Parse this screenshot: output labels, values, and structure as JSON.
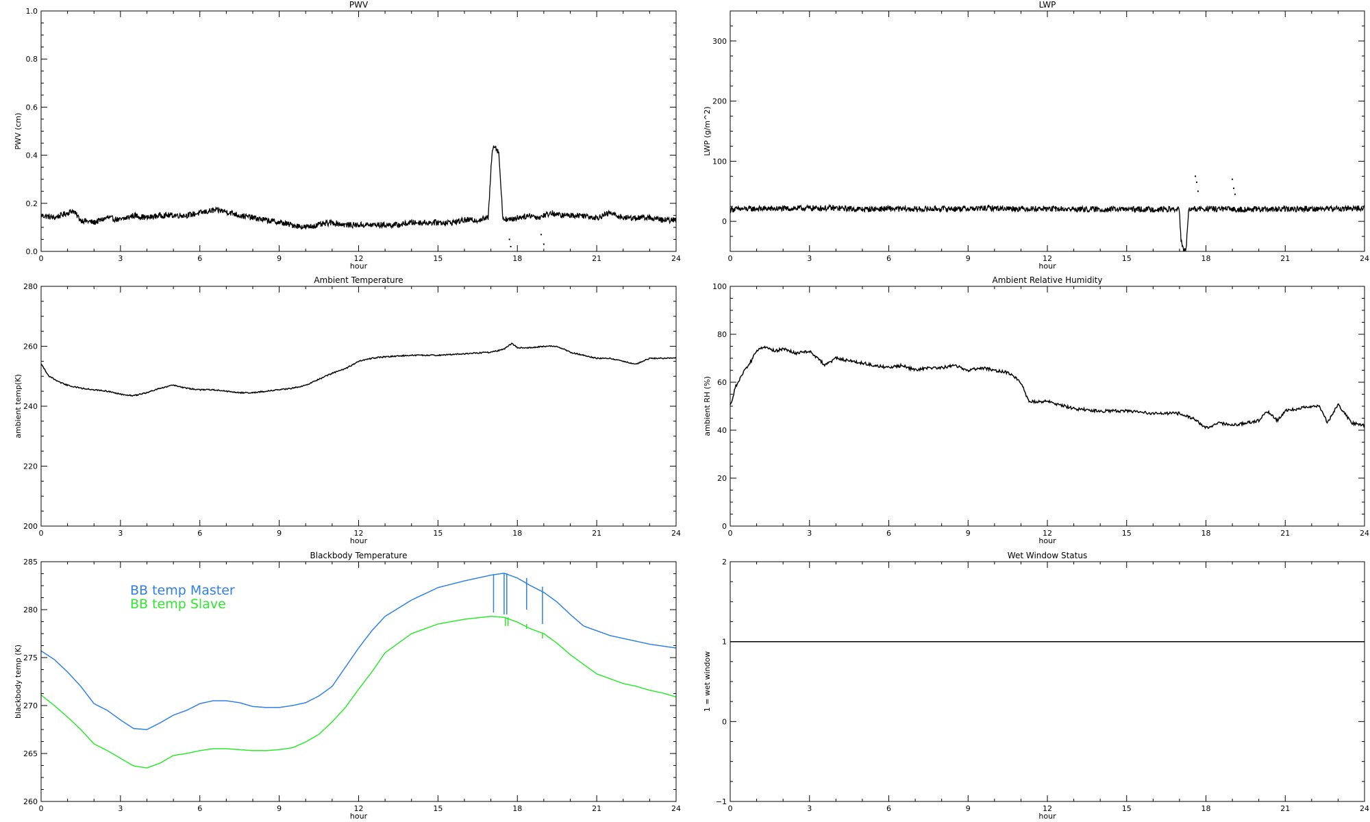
{
  "chart_data": [
    {
      "id": "pwv",
      "type": "line",
      "title": "PWV",
      "xlabel": "hour",
      "ylabel": "PWV (cm)",
      "xlim": [
        0,
        24
      ],
      "ylim": [
        0,
        1
      ],
      "xticks": [
        0,
        3,
        6,
        9,
        12,
        15,
        18,
        21,
        24
      ],
      "yticks": [
        0.0,
        0.2,
        0.4,
        0.6,
        0.8,
        1.0
      ],
      "ytick_labels": [
        "0.0",
        "0.2",
        "0.4",
        "0.6",
        "0.8",
        "1.0"
      ],
      "series": [
        {
          "color": "#000000",
          "noisy": true,
          "x": [
            0,
            0.5,
            1.0,
            1.2,
            1.5,
            2,
            2.5,
            3,
            3.5,
            4,
            4.5,
            5,
            5.5,
            6,
            6.5,
            6.8,
            7.2,
            7.5,
            8,
            8.5,
            9,
            9.5,
            10,
            10.5,
            11,
            11.5,
            12,
            12.5,
            13,
            13.5,
            14,
            14.5,
            15,
            15.5,
            16,
            16.5,
            16.9,
            17.05,
            17.15,
            17.3,
            17.45,
            17.7,
            18,
            18.5,
            18.8,
            19,
            19.3,
            19.6,
            20,
            20.5,
            21,
            21.5,
            22,
            22.5,
            23,
            23.5,
            24
          ],
          "y": [
            0.15,
            0.14,
            0.16,
            0.17,
            0.13,
            0.12,
            0.14,
            0.13,
            0.15,
            0.14,
            0.15,
            0.15,
            0.15,
            0.16,
            0.17,
            0.17,
            0.16,
            0.15,
            0.14,
            0.13,
            0.12,
            0.11,
            0.1,
            0.11,
            0.12,
            0.11,
            0.11,
            0.11,
            0.11,
            0.11,
            0.12,
            0.12,
            0.12,
            0.12,
            0.13,
            0.13,
            0.14,
            0.43,
            0.44,
            0.41,
            0.14,
            0.13,
            0.14,
            0.15,
            0.14,
            0.15,
            0.16,
            0.15,
            0.15,
            0.15,
            0.14,
            0.16,
            0.14,
            0.14,
            0.14,
            0.13,
            0.13
          ]
        }
      ],
      "scatter_points": [
        [
          17.7,
          0.05
        ],
        [
          17.75,
          0.02
        ],
        [
          18.9,
          0.07
        ],
        [
          19.0,
          0.03
        ]
      ]
    },
    {
      "id": "lwp",
      "type": "line",
      "title": "LWP",
      "xlabel": "hour",
      "ylabel": "LWP (g/m^2)",
      "xlim": [
        0,
        24
      ],
      "ylim": [
        -50,
        350
      ],
      "xticks": [
        0,
        3,
        6,
        9,
        12,
        15,
        18,
        21,
        24
      ],
      "yticks": [
        0,
        100,
        200,
        300
      ],
      "ytick_labels": [
        "0",
        "100",
        "200",
        "300"
      ],
      "series": [
        {
          "color": "#000000",
          "noisy": true,
          "x": [
            0,
            1,
            2,
            3,
            4,
            5,
            6,
            7,
            8,
            9,
            10,
            11,
            12,
            13,
            14,
            15,
            16,
            17.0,
            17.05,
            17.15,
            17.25,
            17.35,
            17.5,
            18,
            19,
            20,
            21,
            22,
            23,
            24
          ],
          "y": [
            20,
            21,
            21,
            22,
            22,
            20,
            21,
            20,
            21,
            21,
            22,
            21,
            21,
            20,
            20,
            20,
            20,
            20,
            -30,
            -50,
            -45,
            20,
            20,
            21,
            20,
            20,
            20,
            21,
            21,
            22
          ]
        }
      ],
      "scatter_points": [
        [
          17.6,
          75
        ],
        [
          17.65,
          65
        ],
        [
          17.7,
          50
        ],
        [
          19.0,
          70
        ],
        [
          19.05,
          55
        ],
        [
          19.1,
          45
        ]
      ]
    },
    {
      "id": "ambient-temp",
      "type": "line",
      "title": "Ambient Temperature",
      "xlabel": "hour",
      "ylabel": "ambient temp(K)",
      "xlim": [
        0,
        24
      ],
      "ylim": [
        200,
        280
      ],
      "xticks": [
        0,
        3,
        6,
        9,
        12,
        15,
        18,
        21,
        24
      ],
      "yticks": [
        200,
        220,
        240,
        260,
        280
      ],
      "ytick_labels": [
        "200",
        "220",
        "240",
        "260",
        "280"
      ],
      "series": [
        {
          "color": "#000000",
          "noisy": false,
          "x": [
            0,
            0.3,
            0.7,
            1,
            1.5,
            2,
            2.5,
            3,
            3.5,
            4,
            4.5,
            5,
            5.5,
            6,
            6.5,
            7,
            7.5,
            8,
            8.5,
            9,
            9.5,
            10,
            10.5,
            11,
            11.5,
            12,
            12.5,
            13,
            14,
            15,
            16,
            17,
            17.5,
            17.8,
            18,
            18.5,
            19,
            19.5,
            20,
            20.5,
            21,
            21.5,
            22,
            22.5,
            23,
            23.5,
            24
          ],
          "y": [
            254,
            250,
            248,
            247,
            246,
            245.5,
            245,
            244,
            243.5,
            244.5,
            246,
            247,
            246,
            245.5,
            245.5,
            245,
            244.5,
            244.5,
            245,
            245.5,
            246,
            247,
            249,
            251,
            252.5,
            255,
            256,
            256.5,
            257,
            257,
            257.5,
            258,
            259,
            261,
            259.5,
            259.5,
            260,
            260,
            258,
            257,
            256,
            256,
            255,
            254,
            256,
            256,
            256
          ]
        }
      ]
    },
    {
      "id": "ambient-rh",
      "type": "line",
      "title": "Ambient Relative Humidity",
      "xlabel": "hour",
      "ylabel": "ambient RH (%)",
      "xlim": [
        0,
        24
      ],
      "ylim": [
        0,
        100
      ],
      "xticks": [
        0,
        3,
        6,
        9,
        12,
        15,
        18,
        21,
        24
      ],
      "yticks": [
        0,
        20,
        40,
        60,
        80,
        100
      ],
      "ytick_labels": [
        "0",
        "20",
        "40",
        "60",
        "80",
        "100"
      ],
      "series": [
        {
          "color": "#000000",
          "noisy": false,
          "x": [
            0,
            0.2,
            0.5,
            0.8,
            1.0,
            1.3,
            1.7,
            2.0,
            2.5,
            3.0,
            3.3,
            3.6,
            4.0,
            4.5,
            5.0,
            5.5,
            6.0,
            6.5,
            7.0,
            7.5,
            8.0,
            8.5,
            9.0,
            9.5,
            10.0,
            10.5,
            10.8,
            11.0,
            11.3,
            12.0,
            13.0,
            14.0,
            15.0,
            16.0,
            17.0,
            17.5,
            18.0,
            18.5,
            19.0,
            19.5,
            20.0,
            20.3,
            20.7,
            21.0,
            21.5,
            22.0,
            22.3,
            22.6,
            23.0,
            23.5,
            24.0
          ],
          "y": [
            50,
            58,
            64,
            69,
            73,
            75,
            73,
            74,
            72,
            73,
            70,
            67,
            70,
            69,
            68,
            67,
            66,
            67,
            65,
            66,
            66,
            67,
            65,
            66,
            65,
            64,
            62,
            60,
            52,
            52,
            49,
            48,
            48,
            47,
            47,
            45,
            41,
            43,
            42,
            43,
            44,
            48,
            44,
            48,
            49,
            50,
            50,
            43,
            51,
            43,
            42
          ]
        }
      ]
    },
    {
      "id": "bb-temp",
      "type": "line",
      "title": "Blackbody Temperature",
      "xlabel": "hour",
      "ylabel": "blackbody temp (K)",
      "xlim": [
        0,
        24
      ],
      "ylim": [
        260,
        285
      ],
      "xticks": [
        0,
        3,
        6,
        9,
        12,
        15,
        18,
        21,
        24
      ],
      "yticks": [
        260,
        265,
        270,
        275,
        280,
        285
      ],
      "ytick_labels": [
        "260",
        "265",
        "270",
        "275",
        "280",
        "285"
      ],
      "legend": [
        "BB temp Master",
        "BB temp Slave"
      ],
      "series": [
        {
          "name": "BB temp Master",
          "color": "#2f7fe6",
          "noisy": false,
          "x": [
            0,
            0.5,
            1,
            1.5,
            2,
            2.5,
            3,
            3.5,
            4,
            4.5,
            5,
            5.5,
            6,
            6.5,
            7,
            7.5,
            8,
            8.5,
            9,
            9.5,
            10,
            10.5,
            11,
            11.5,
            12,
            12.5,
            13,
            14,
            15,
            16,
            17,
            17.5,
            18,
            18.5,
            19,
            19.5,
            20,
            20.5,
            21,
            21.5,
            22,
            22.5,
            23,
            23.5,
            24
          ],
          "y": [
            275.7,
            274.8,
            273.5,
            272,
            270.2,
            269.5,
            268.5,
            267.6,
            267.5,
            268.2,
            269,
            269.5,
            270.2,
            270.5,
            270.5,
            270.3,
            269.9,
            269.8,
            269.8,
            270,
            270.3,
            271,
            272,
            274,
            276,
            277.8,
            279.3,
            281,
            282.3,
            283,
            283.6,
            283.8,
            283.3,
            282.5,
            281.8,
            280.8,
            279.5,
            278.3,
            277.8,
            277.3,
            277,
            276.7,
            276.4,
            276.2,
            276
          ],
          "spikes": [
            [
              17.1,
              283.7,
              279.7
            ],
            [
              17.5,
              283.8,
              279.5
            ],
            [
              17.6,
              283.8,
              279.5
            ],
            [
              18.35,
              283.3,
              280.0
            ],
            [
              18.95,
              282.4,
              278.5
            ]
          ]
        },
        {
          "name": "BB temp Slave",
          "color": "#2ee82e",
          "noisy": false,
          "x": [
            0,
            0.5,
            1,
            1.5,
            2,
            2.5,
            3,
            3.5,
            4,
            4.5,
            5,
            5.5,
            6,
            6.5,
            7,
            7.5,
            8,
            8.5,
            9,
            9.5,
            10,
            10.5,
            11,
            11.5,
            12,
            12.5,
            13,
            14,
            15,
            16,
            17,
            17.5,
            18,
            18.5,
            19,
            19.5,
            20,
            20.5,
            21,
            21.5,
            22,
            22.5,
            23,
            23.5,
            24
          ],
          "y": [
            271.1,
            270,
            268.8,
            267.5,
            266,
            265.3,
            264.5,
            263.7,
            263.5,
            264,
            264.8,
            265,
            265.3,
            265.5,
            265.5,
            265.4,
            265.3,
            265.3,
            265.4,
            265.6,
            266.2,
            267,
            268.3,
            269.8,
            271.7,
            273.5,
            275.5,
            277.5,
            278.5,
            279,
            279.3,
            279.2,
            278.7,
            278,
            277.5,
            276.5,
            275.3,
            274.3,
            273.3,
            272.8,
            272.3,
            272,
            271.6,
            271.3,
            270.9
          ],
          "spikes": [
            [
              17.55,
              279.2,
              278.3
            ],
            [
              17.65,
              279.2,
              278.3
            ],
            [
              18.35,
              278.5,
              278.0
            ],
            [
              18.95,
              277.6,
              277.0
            ]
          ]
        }
      ]
    },
    {
      "id": "wet-window",
      "type": "line",
      "title": "Wet Window Status",
      "xlabel": "hour",
      "ylabel": "1 = wet window",
      "xlim": [
        0,
        24
      ],
      "ylim": [
        -1,
        2
      ],
      "xticks": [
        0,
        3,
        6,
        9,
        12,
        15,
        18,
        21,
        24
      ],
      "yticks": [
        -1,
        0,
        1,
        2
      ],
      "ytick_labels": [
        "−1",
        "0",
        "1",
        "2"
      ],
      "series": [
        {
          "color": "#000000",
          "noisy": false,
          "x": [
            0,
            24
          ],
          "y": [
            1,
            1
          ]
        }
      ]
    }
  ]
}
